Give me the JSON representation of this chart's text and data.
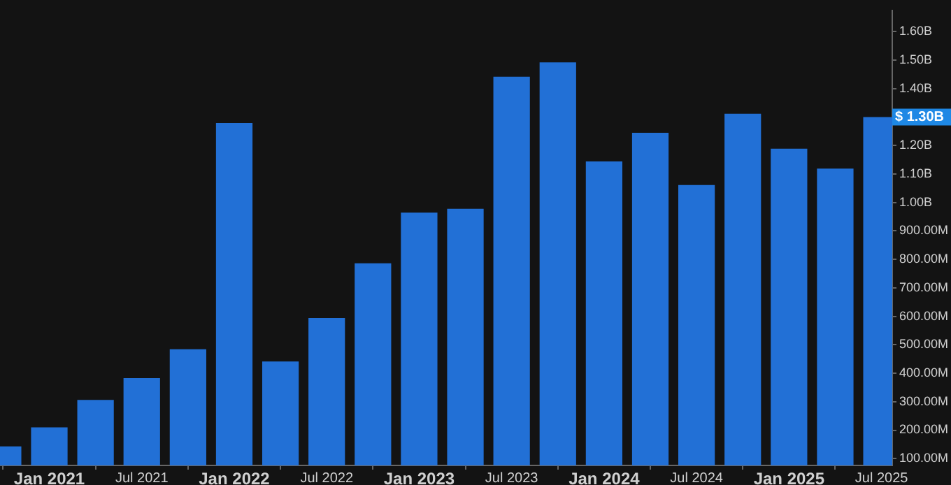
{
  "chart_data": {
    "type": "bar",
    "x": [
      "2020-10",
      "2021-01",
      "2021-04",
      "2021-07",
      "2021-10",
      "2022-01",
      "2022-04",
      "2022-07",
      "2022-10",
      "2023-01",
      "2023-04",
      "2023-07",
      "2023-10",
      "2024-01",
      "2024-04",
      "2024-07",
      "2024-10",
      "2025-01",
      "2025-04",
      "2025-07"
    ],
    "values": [
      143000000,
      210000000,
      306000000,
      383000000,
      484000000,
      1279000000,
      441000000,
      594000000,
      786000000,
      964000000,
      978000000,
      1442000000,
      1492000000,
      1144000000,
      1245000000,
      1061000000,
      1312000000,
      1189000000,
      1119000000,
      1300000000
    ],
    "color": "#2270d6",
    "xlim": [
      "2020-09-25",
      "2025-07-22"
    ],
    "xticks": [
      {
        "value": "2021-01",
        "label": "Jan 2021"
      },
      {
        "value": "2021-07",
        "label": "Jul 2021"
      },
      {
        "value": "2022-01",
        "label": "Jan 2022"
      },
      {
        "value": "2022-07",
        "label": "Jul 2022"
      },
      {
        "value": "2023-01",
        "label": "Jan 2023"
      },
      {
        "value": "2023-07",
        "label": "Jul 2023"
      },
      {
        "value": "2024-01",
        "label": "Jan 2024"
      },
      {
        "value": "2024-07",
        "label": "Jul 2024"
      },
      {
        "value": "2025-01",
        "label": "Jan 2025"
      },
      {
        "value": "2025-07",
        "label": "Jul 2025"
      }
    ],
    "ylim": [
      76000000,
      1675000000
    ],
    "yticks": [
      {
        "value": 100000000,
        "label": "100.00M"
      },
      {
        "value": 200000000,
        "label": "200.00M"
      },
      {
        "value": 300000000,
        "label": "300.00M"
      },
      {
        "value": 400000000,
        "label": "400.00M"
      },
      {
        "value": 500000000,
        "label": "500.00M"
      },
      {
        "value": 600000000,
        "label": "600.00M"
      },
      {
        "value": 700000000,
        "label": "700.00M"
      },
      {
        "value": 800000000,
        "label": "800.00M"
      },
      {
        "value": 900000000,
        "label": "900.00M"
      },
      {
        "value": 1000000000,
        "label": "1.00B"
      },
      {
        "value": 1100000000,
        "label": "1.10B"
      },
      {
        "value": 1200000000,
        "label": "1.20B"
      },
      {
        "value": 1400000000,
        "label": "1.40B"
      },
      {
        "value": 1500000000,
        "label": "1.50B"
      },
      {
        "value": 1600000000,
        "label": "1.60B"
      }
    ],
    "annotations": [
      "$ 1.30B"
    ],
    "grid": false,
    "legend": false
  }
}
